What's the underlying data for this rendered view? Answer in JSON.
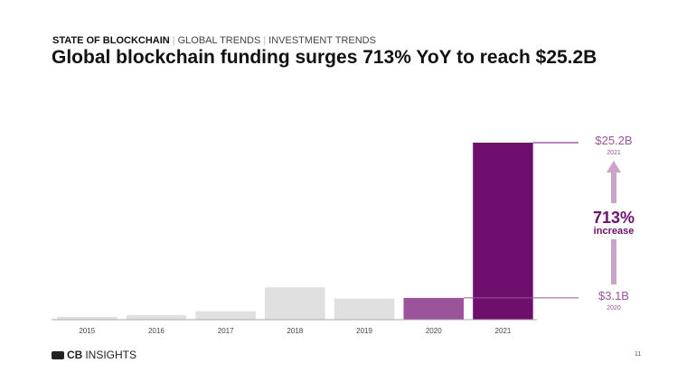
{
  "header": {
    "section": "STATE OF BLOCKCHAIN",
    "crumbs": [
      "GLOBAL TRENDS",
      "INVESTMENT TRENDS"
    ],
    "title": "Global blockchain funding surges 713% YoY to reach $25.2B"
  },
  "chart_data": {
    "type": "bar",
    "categories": [
      "2015",
      "2016",
      "2017",
      "2018",
      "2019",
      "2020",
      "2021"
    ],
    "values": [
      0.4,
      0.65,
      1.2,
      4.6,
      3.0,
      3.1,
      25.2
    ],
    "unit": "$B",
    "ylim": [
      0,
      25.2
    ],
    "grid": false,
    "colors": {
      "default": "#e0e0e0",
      "2020": "#9b5499",
      "2021": "#6f0f6d",
      "arrow": "#c9a3c8"
    },
    "annotations": {
      "top_value": "$25.2B",
      "top_year": "2021",
      "bottom_value": "$3.1B",
      "bottom_year": "2020",
      "change": "713%",
      "change_label": "increase"
    }
  },
  "footer": {
    "brand": "CBINSIGHTS",
    "brand_bold": "CB",
    "brand_rest": "INSIGHTS",
    "page": "11"
  }
}
